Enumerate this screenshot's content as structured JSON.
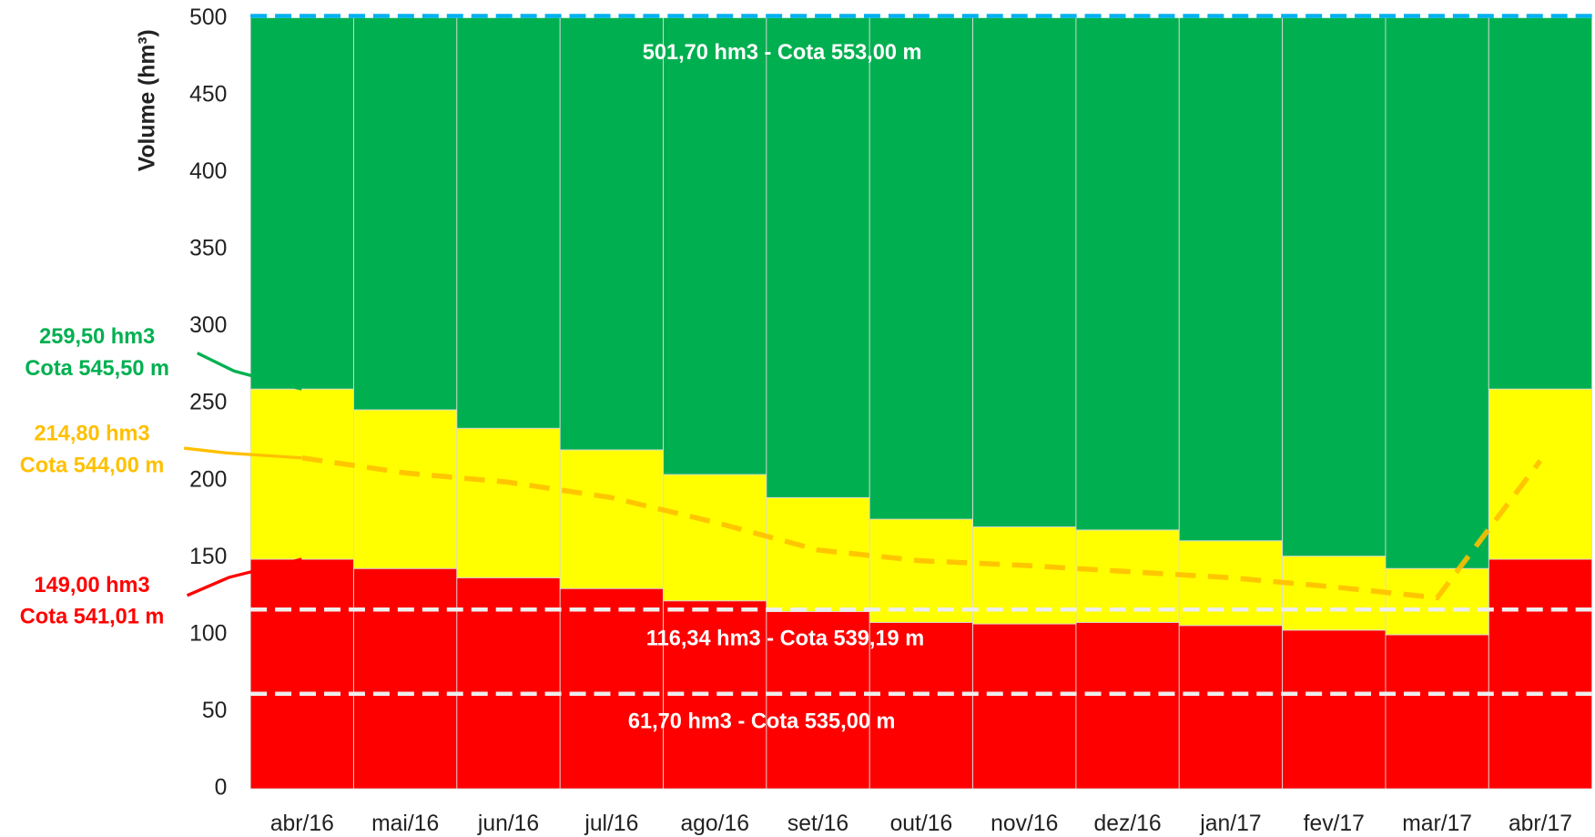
{
  "chart_data": {
    "type": "bar",
    "stacked": true,
    "y_label": "Volume (hm³)",
    "categories": [
      "abr/16",
      "mai/16",
      "jun/16",
      "jul/16",
      "ago/16",
      "set/16",
      "out/16",
      "nov/16",
      "dez/16",
      "jan/17",
      "fev/17",
      "mar/17",
      "abr/17"
    ],
    "series": [
      {
        "color": "#ff0000",
        "values": [
          149,
          143,
          137,
          130,
          122,
          115,
          108,
          107,
          108,
          106,
          103,
          100,
          149
        ]
      },
      {
        "color": "#ffff00",
        "values": [
          110.5,
          103,
          97,
          90,
          82,
          74,
          67,
          63,
          60,
          55,
          48,
          43,
          110.5
        ]
      },
      {
        "color": "#00b050",
        "values": [
          242.2,
          255.7,
          267.7,
          281.7,
          297.7,
          312.7,
          326.7,
          331.7,
          333.7,
          340.7,
          350.7,
          358.7,
          242.2
        ]
      },
      {
        "type": "line",
        "color": "#ffc000",
        "dashed": true,
        "values": [
          214.8,
          205,
          199,
          189,
          173,
          155,
          148,
          145,
          141,
          137,
          131,
          124,
          213
        ]
      }
    ],
    "ylim": [
      0,
      500
    ],
    "yticks": [
      0,
      50,
      100,
      150,
      200,
      250,
      300,
      350,
      400,
      450,
      500
    ],
    "grid": false,
    "reference_lines": [
      {
        "value": 501.7,
        "label": "501,70 hm3 - Cota 553,00 m",
        "color": "#00b0f0"
      },
      {
        "value": 116.34,
        "label": "116,34 hm3 - Cota 539,19 m",
        "color": "#eeeeee"
      },
      {
        "value": 61.7,
        "label": "61,70  hm3 - Cota 535,00 m",
        "color": "#eeeeee"
      }
    ],
    "annotations": [
      {
        "value": 259.5,
        "lines": [
          "259,50  hm3",
          "Cota 545,50 m"
        ],
        "color": "#00b050"
      },
      {
        "value": 214.8,
        "lines": [
          "214,80  hm3",
          "Cota 544,00 m"
        ],
        "color": "#ffc000"
      },
      {
        "value": 149,
        "lines": [
          "149,00  hm3",
          "Cota 541,01 m"
        ],
        "color": "#ff0000"
      }
    ]
  }
}
